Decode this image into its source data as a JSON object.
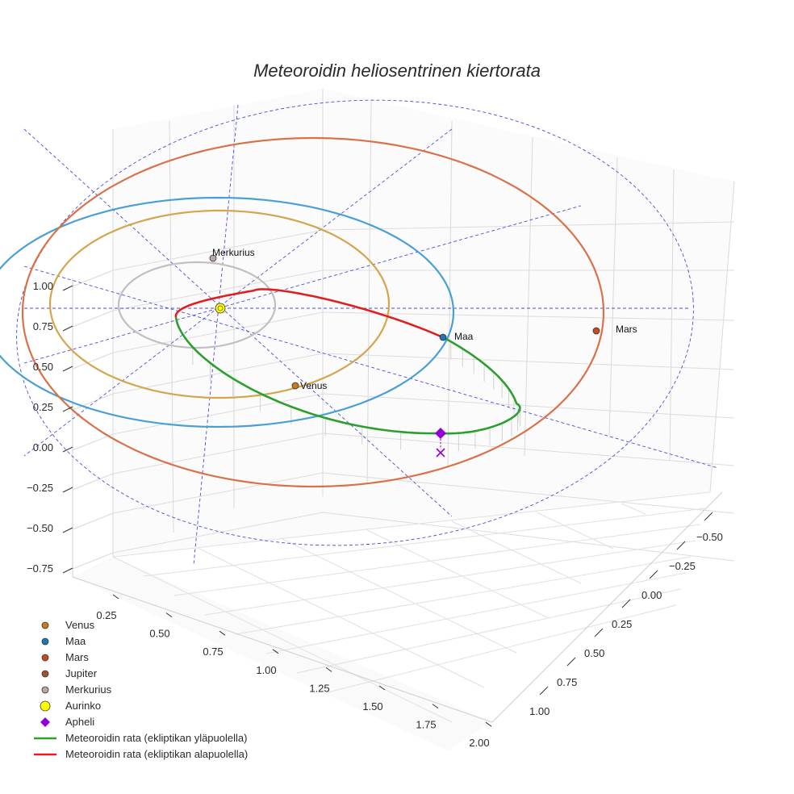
{
  "chart_data": {
    "type": "scatter",
    "projection": "3d",
    "title": "Meteoroidin heliosentrinen kiertorata",
    "axes": {
      "x": {
        "ticks": [
          "0.25",
          "0.50",
          "0.75",
          "1.00",
          "1.25",
          "1.50",
          "1.75",
          "2.00"
        ],
        "range": [
          0.25,
          2.0
        ]
      },
      "y": {
        "ticks": [
          "−0.50",
          "−0.25",
          "0.00",
          "0.25",
          "0.50",
          "0.75",
          "1.00"
        ],
        "range": [
          -0.5,
          1.0
        ]
      },
      "z": {
        "ticks": [
          "1.00",
          "0.75",
          "0.50",
          "0.25",
          "0.00",
          "−0.25",
          "−0.50",
          "−0.75"
        ],
        "range": [
          -0.75,
          1.0
        ]
      }
    },
    "bodies": [
      {
        "name": "Venus",
        "label": "Venus",
        "color": "#c87a1e"
      },
      {
        "name": "Maa",
        "label": "Maa",
        "color": "#1f77b4"
      },
      {
        "name": "Mars",
        "label": "Mars",
        "color": "#c84a1e"
      },
      {
        "name": "Merkurius",
        "label": "Merkurius",
        "color": "#b8a8a0"
      },
      {
        "name": "Aurinko",
        "label": "",
        "color": "#ffff00"
      }
    ],
    "orbits": [
      {
        "name": "Merkurius",
        "color": "#c0c0c0"
      },
      {
        "name": "Venus",
        "color": "#d4a54a"
      },
      {
        "name": "Maa",
        "color": "#4a9fd4"
      },
      {
        "name": "Mars",
        "color": "#d9714a"
      }
    ],
    "meteoroid": {
      "above_color": "#2ca02c",
      "below_color": "#e02020",
      "aphelion_color": "#9400d3"
    },
    "legend": [
      {
        "label": "Venus",
        "marker": "circle",
        "color": "#c87a1e"
      },
      {
        "label": "Maa",
        "marker": "circle",
        "color": "#1f77b4"
      },
      {
        "label": "Mars",
        "marker": "circle",
        "color": "#c84a1e"
      },
      {
        "label": "Jupiter",
        "marker": "circle",
        "color": "#a0522d"
      },
      {
        "label": "Merkurius",
        "marker": "circle",
        "color": "#b8a8a0"
      },
      {
        "label": "Aurinko",
        "marker": "circle-large",
        "color": "#ffff00"
      },
      {
        "label": "Apheli",
        "marker": "diamond",
        "color": "#9400d3"
      },
      {
        "label": "Meteoroidin rata (ekliptikan yläpuolella)",
        "marker": "line",
        "color": "#2ca02c"
      },
      {
        "label": "Meteoroidin rata (ekliptikan alapuolella)",
        "marker": "line",
        "color": "#e02020"
      }
    ]
  }
}
